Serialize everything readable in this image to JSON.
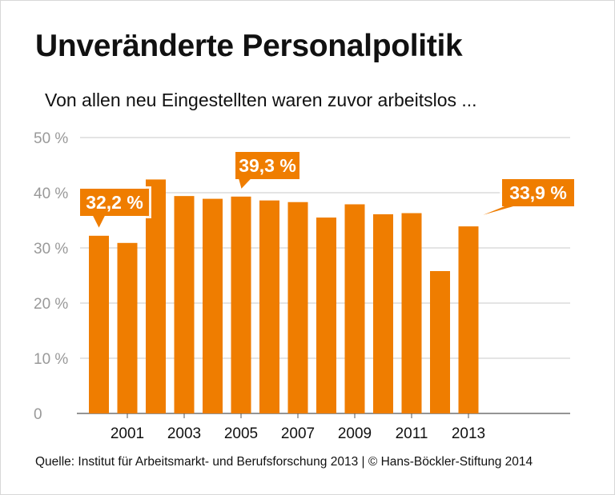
{
  "title": "Unveränderte Personalpolitik",
  "subtitle": "Von allen neu Eingestellten waren zuvor arbeitslos ...",
  "source": "Quelle: Institut für Arbeitsmarkt- und Berufsforschung 2013 | © Hans-Böckler-Stiftung 2014",
  "chart_data": {
    "type": "bar",
    "categories": [
      "2000",
      "2001",
      "2002",
      "2003",
      "2004",
      "2005",
      "2006",
      "2007",
      "2008",
      "2009",
      "2010",
      "2011",
      "2012",
      "2013"
    ],
    "x_tick_labels": [
      "2001",
      "2003",
      "2005",
      "2007",
      "2009",
      "2011",
      "2013"
    ],
    "values": [
      32.2,
      30.9,
      42.4,
      39.4,
      38.9,
      39.3,
      38.6,
      38.3,
      35.5,
      37.9,
      36.1,
      36.3,
      25.8,
      33.9
    ],
    "y_tick_labels": [
      "0",
      "10 %",
      "20 %",
      "30 %",
      "40 %",
      "50 %"
    ],
    "ylim": [
      0,
      50
    ],
    "grid": true,
    "bar_color": "#ef7d00",
    "annotations": [
      {
        "category": "2000",
        "text": "32,2 %"
      },
      {
        "category": "2005",
        "text": "39,3 %"
      },
      {
        "category": "2013",
        "text": "33,9 %"
      }
    ]
  }
}
